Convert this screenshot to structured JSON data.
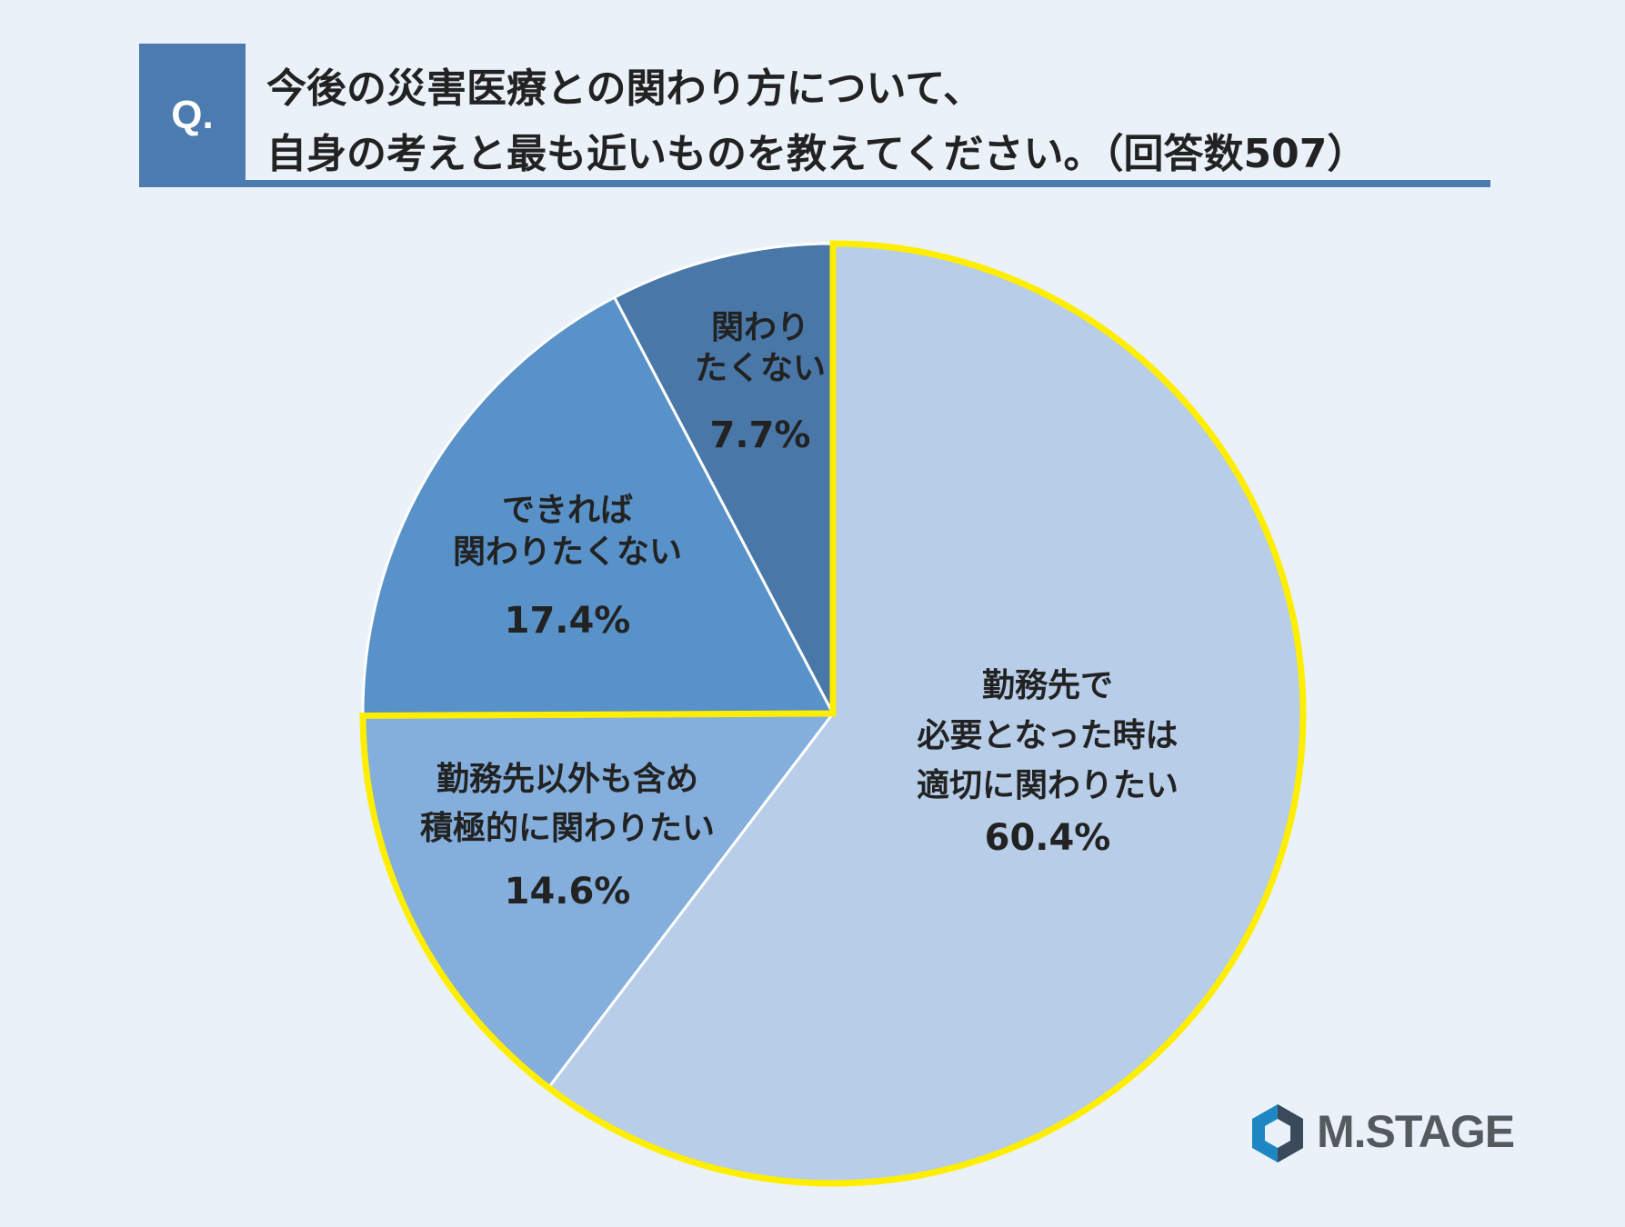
{
  "header": {
    "badge": "Q.",
    "line1": "今後の災害医療との関わり方について、",
    "line2": "自身の考えと最も近いものを教えてください。（回答数507）"
  },
  "colors": {
    "background": "#eaf1f9",
    "accent": "#4b7baf",
    "highlight": "#ffee00"
  },
  "chart_data": {
    "type": "pie",
    "start_angle": "12 o'clock, clockwise",
    "highlighted_slices": [
      0,
      1
    ],
    "slices": [
      {
        "label": [
          "勤務先で",
          "必要となった時は",
          "適切に関わりたい"
        ],
        "value": 60.4,
        "value_label": "60.4%",
        "color": "#b7cde8"
      },
      {
        "label": [
          "勤務先以外も含め",
          "積極的に関わりたい"
        ],
        "value": 14.6,
        "value_label": "14.6%",
        "color": "#84aedb"
      },
      {
        "label": [
          "できれば",
          "関わりたくない"
        ],
        "value": 17.4,
        "value_label": "17.4%",
        "color": "#5892c8"
      },
      {
        "label": [
          "関わり",
          "たくない"
        ],
        "value": 7.7,
        "value_label": "7.7%",
        "color": "#4978a8"
      }
    ]
  },
  "logo": {
    "icon": "hexagon-logo-icon",
    "text": "M.STAGE"
  }
}
